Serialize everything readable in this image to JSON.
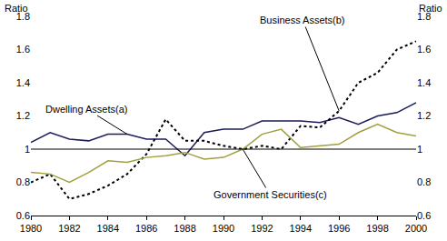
{
  "chart_data": {
    "type": "line",
    "ylabel": "Ratio",
    "y2label": "Ratio",
    "x": [
      1980,
      1981,
      1982,
      1983,
      1984,
      1985,
      1986,
      1987,
      1988,
      1989,
      1990,
      1991,
      1992,
      1993,
      1994,
      1995,
      1996,
      1997,
      1998,
      1999,
      2000
    ],
    "xlim": [
      1980,
      2000
    ],
    "xticks": [
      1980,
      1982,
      1984,
      1986,
      1988,
      1990,
      1992,
      1994,
      1996,
      1998,
      2000
    ],
    "ylim": [
      0.6,
      1.8
    ],
    "yticks": [
      0.6,
      0.8,
      1,
      1.2,
      1.4,
      1.6,
      1.8
    ],
    "y2lim": [
      0.6,
      1.8
    ],
    "y2ticks": [
      0.6,
      0.8,
      1,
      1.2,
      1.4,
      1.6,
      1.8
    ],
    "hline": 1,
    "grid": false,
    "series": [
      {
        "name": "Dwelling Assets(a)",
        "color": "#1c1c5a",
        "line_style": "solid",
        "values": [
          1.04,
          1.1,
          1.06,
          1.05,
          1.09,
          1.09,
          1.06,
          1.06,
          0.96,
          1.1,
          1.12,
          1.12,
          1.17,
          1.17,
          1.17,
          1.16,
          1.19,
          1.15,
          1.2,
          1.22,
          1.28
        ]
      },
      {
        "name": "Business Assets(b)",
        "color": "#000000",
        "line_style": "dot",
        "values": [
          0.8,
          0.85,
          0.7,
          0.73,
          0.78,
          0.85,
          0.97,
          1.18,
          1.05,
          1.05,
          1.02,
          1.0,
          1.02,
          1.0,
          1.14,
          1.13,
          1.23,
          1.4,
          1.46,
          1.6,
          1.65
        ]
      },
      {
        "name": "Government Securities(c)",
        "color": "#a0a040",
        "line_style": "solid",
        "values": [
          0.86,
          0.85,
          0.8,
          0.86,
          0.93,
          0.92,
          0.95,
          0.96,
          0.98,
          0.94,
          0.95,
          1.0,
          1.09,
          1.12,
          1.01,
          1.02,
          1.03,
          1.1,
          1.15,
          1.1,
          1.08
        ]
      }
    ]
  }
}
